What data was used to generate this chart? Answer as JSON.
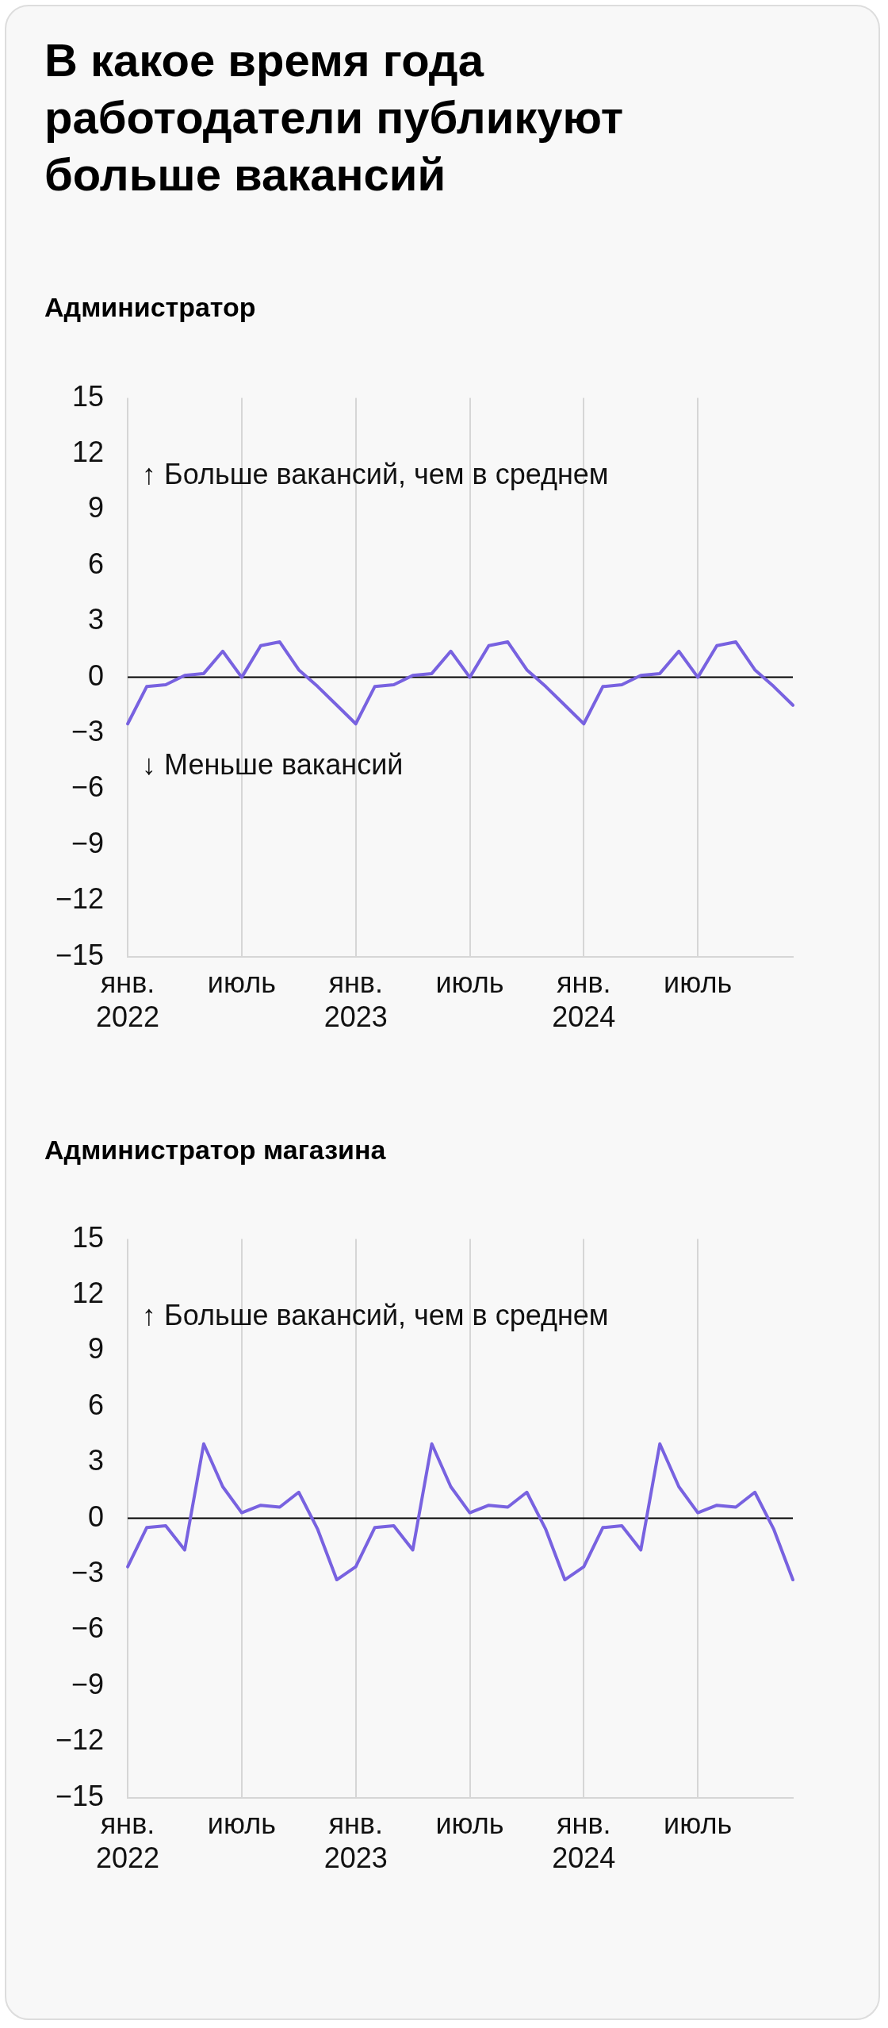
{
  "chart_data": [
    {
      "type": "line",
      "title": "В какое время года работодатели публикуют больше вакансий",
      "subtitle": "Администратор",
      "categories": [
        "янв.\n2022",
        null,
        null,
        null,
        null,
        null,
        "июль",
        null,
        null,
        null,
        null,
        null,
        "янв.\n2023",
        null,
        null,
        null,
        null,
        null,
        "июль",
        null,
        null,
        null,
        null,
        null,
        "янв.\n2024",
        null,
        null,
        null,
        null,
        null,
        "июль",
        null,
        null,
        null,
        null,
        null
      ],
      "series": [
        {
          "color": "#7862e0",
          "values": [
            -2.5,
            -0.5,
            -0.4,
            0.1,
            0.2,
            1.4,
            0,
            1.7,
            1.9,
            0.4,
            -0.5,
            -1.5,
            -2.5,
            -0.5,
            -0.4,
            0.1,
            0.2,
            1.4,
            0,
            1.7,
            1.9,
            0.4,
            -0.5,
            -1.5,
            -2.5,
            -0.5,
            -0.4,
            0.1,
            0.2,
            1.4,
            0,
            1.7,
            1.9,
            0.4,
            -0.5,
            -1.5
          ]
        }
      ],
      "ylim": [
        -15,
        15
      ],
      "yticks": [
        15,
        12,
        9,
        6,
        3,
        0,
        {
          "value": -3,
          "label": "−3"
        },
        {
          "value": -6,
          "label": "−6"
        },
        {
          "value": -9,
          "label": "−9"
        },
        {
          "value": -12,
          "label": "−12"
        },
        {
          "value": -15,
          "label": "−15"
        }
      ],
      "ref_lines": [
        {
          "axis": "y",
          "value": 0,
          "color": "#000000"
        }
      ],
      "grid": "x",
      "legend": false,
      "marker": "none",
      "line_style": "solid",
      "annotations": [
        "↑ Больше вакансий, чем в среднем",
        "↓ Меньше вакансий"
      ]
    },
    {
      "type": "line",
      "title": "Администратор магазина",
      "categories": [
        "янв.\n2022",
        null,
        null,
        null,
        null,
        null,
        "июль",
        null,
        null,
        null,
        null,
        null,
        "янв.\n2023",
        null,
        null,
        null,
        null,
        null,
        "июль",
        null,
        null,
        null,
        null,
        null,
        "янв.\n2024",
        null,
        null,
        null,
        null,
        null,
        "июль",
        null,
        null,
        null,
        null,
        null
      ],
      "series": [
        {
          "color": "#7862e0",
          "values": [
            -2.6,
            -0.5,
            -0.4,
            -1.7,
            4.0,
            1.7,
            0.3,
            0.7,
            0.6,
            1.4,
            -0.6,
            -3.3,
            -2.6,
            -0.5,
            -0.4,
            -1.7,
            4.0,
            1.7,
            0.3,
            0.7,
            0.6,
            1.4,
            -0.6,
            -3.3,
            -2.6,
            -0.5,
            -0.4,
            -1.7,
            4.0,
            1.7,
            0.3,
            0.7,
            0.6,
            1.4,
            -0.6,
            -3.3
          ]
        }
      ],
      "ylim": [
        -15,
        15
      ],
      "yticks": [
        15,
        12,
        9,
        6,
        3,
        0,
        {
          "value": -3,
          "label": "−3"
        },
        {
          "value": -6,
          "label": "−6"
        },
        {
          "value": -9,
          "label": "−9"
        },
        {
          "value": -12,
          "label": "−12"
        },
        {
          "value": -15,
          "label": "−15"
        }
      ],
      "ref_lines": [
        {
          "axis": "y",
          "value": 0,
          "color": "#000000"
        }
      ],
      "grid": "x",
      "legend": false,
      "marker": "none",
      "line_style": "solid",
      "annotations": [
        "↑ Больше вакансий, чем в среднем"
      ]
    }
  ]
}
